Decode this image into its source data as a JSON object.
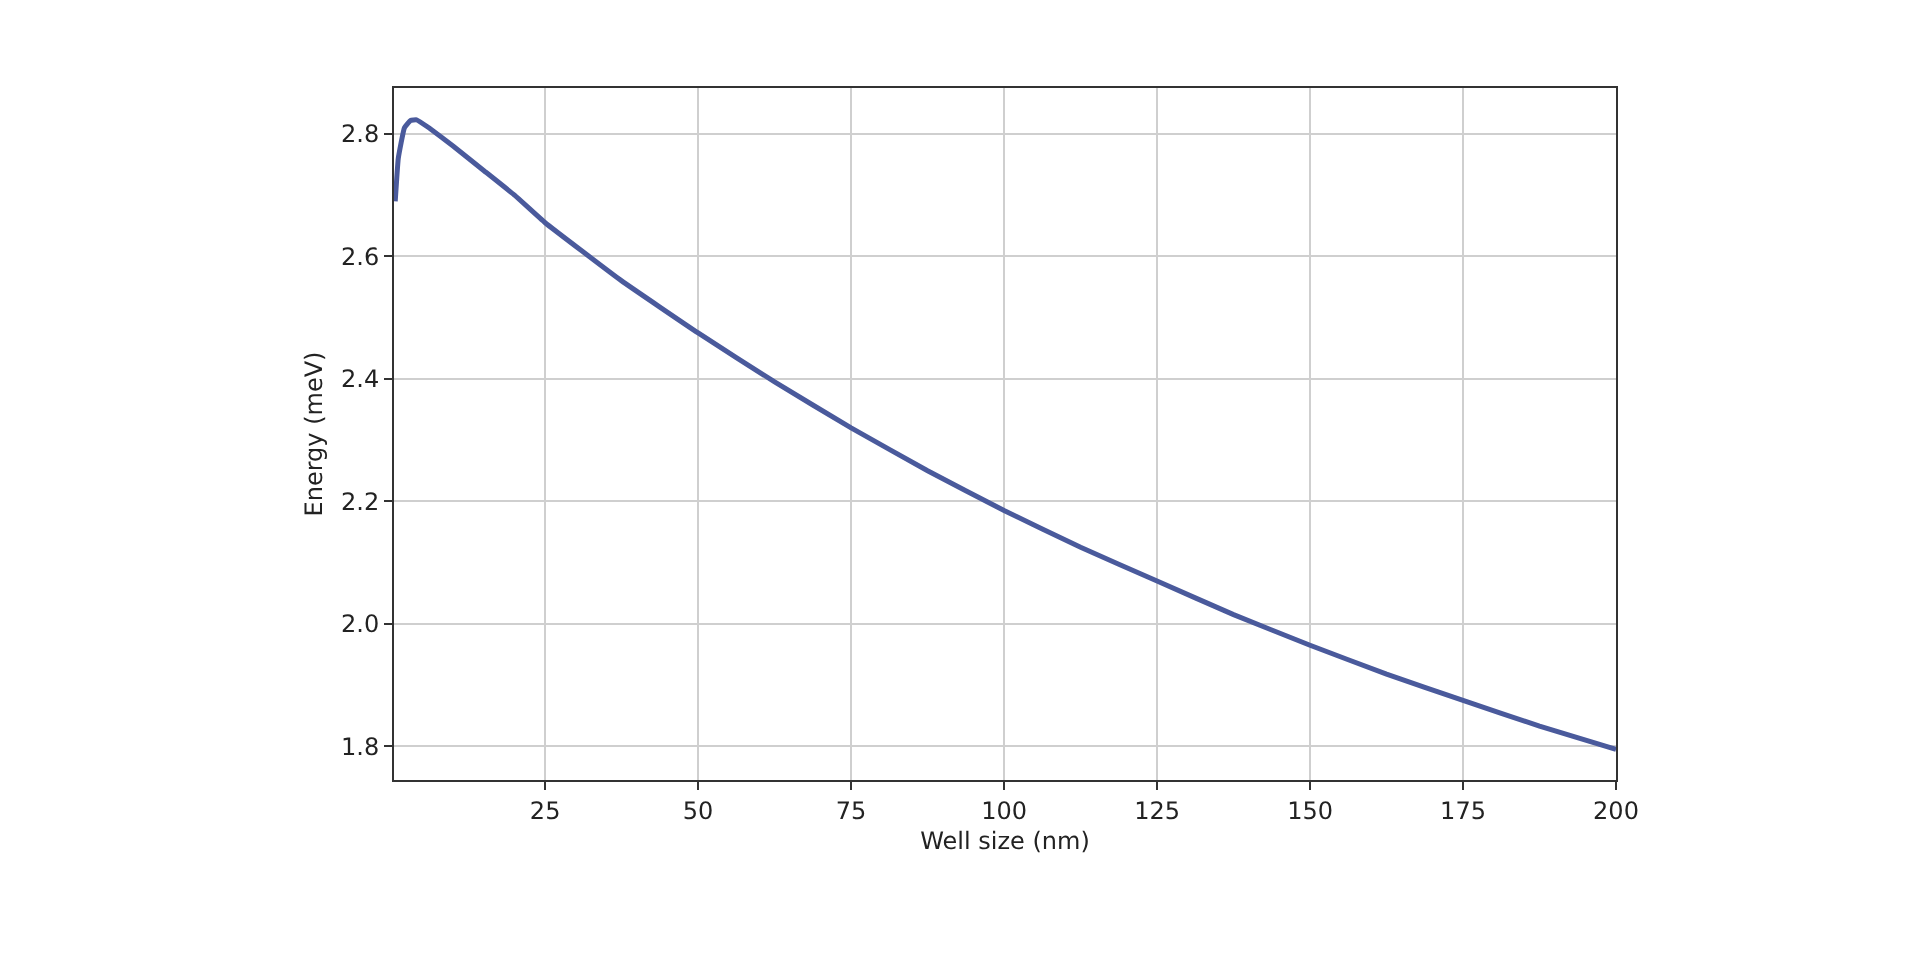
{
  "chart_data": {
    "type": "line",
    "xlabel": "Well size (nm)",
    "ylabel": "Energy (meV)",
    "xlim": [
      0.3,
      200
    ],
    "xticks": [
      25,
      50,
      75,
      100,
      125,
      150,
      175,
      200
    ],
    "ylim": [
      1.745,
      2.875
    ],
    "yticks": [
      1.8,
      {
        "value": 2,
        "label": "2.0"
      },
      2.2,
      2.4,
      2.6,
      2.8
    ],
    "grid": true,
    "legend": false,
    "marker": "none",
    "line_style": "solid",
    "series": [
      {
        "color": "#4a5a9c",
        "x": [
          0.5,
          1,
          2,
          3,
          4,
          6,
          10,
          15,
          20,
          25,
          37.5,
          50,
          62.5,
          75,
          87.5,
          100,
          112.5,
          125,
          137.5,
          150,
          162.5,
          175,
          187.5,
          200
        ],
        "values": [
          2.69,
          2.76,
          2.81,
          2.822,
          2.823,
          2.81,
          2.78,
          2.74,
          2.7,
          2.655,
          2.56,
          2.475,
          2.395,
          2.32,
          2.25,
          2.185,
          2.125,
          2.07,
          2.015,
          1.965,
          1.918,
          1.875,
          1.833,
          1.795
        ]
      }
    ]
  }
}
